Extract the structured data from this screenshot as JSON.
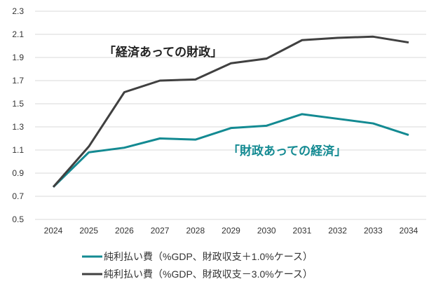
{
  "chart_data": {
    "type": "line",
    "title": "",
    "xlabel": "",
    "ylabel": "",
    "x": [
      "2024",
      "2025",
      "2026",
      "2027",
      "2028",
      "2029",
      "2030",
      "2031",
      "2032",
      "2033",
      "2034"
    ],
    "ylim": [
      0.5,
      2.3
    ],
    "yticks": [
      "0.5",
      "0.7",
      "0.9",
      "1.1",
      "1.3",
      "1.5",
      "1.7",
      "1.9",
      "2.1",
      "2.3"
    ],
    "grid": true,
    "legend_position": "bottom",
    "series": [
      {
        "name": "純利払い費（%GDP、財政収支＋1.0%ケース）",
        "color": "#138a92",
        "values": [
          0.78,
          1.08,
          1.12,
          1.2,
          1.19,
          1.29,
          1.31,
          1.41,
          1.37,
          1.33,
          1.23
        ]
      },
      {
        "name": "純利払い費（%GDP、財政収支－3.0%ケース）",
        "color": "#404040",
        "values": [
          0.78,
          1.13,
          1.6,
          1.7,
          1.71,
          1.85,
          1.89,
          2.05,
          2.07,
          2.08,
          2.03
        ]
      }
    ],
    "annotations": [
      {
        "text": "「経済あっての財政」",
        "color": "#222222"
      },
      {
        "text": "「財政あっての経済」",
        "color": "#138a92"
      }
    ]
  }
}
